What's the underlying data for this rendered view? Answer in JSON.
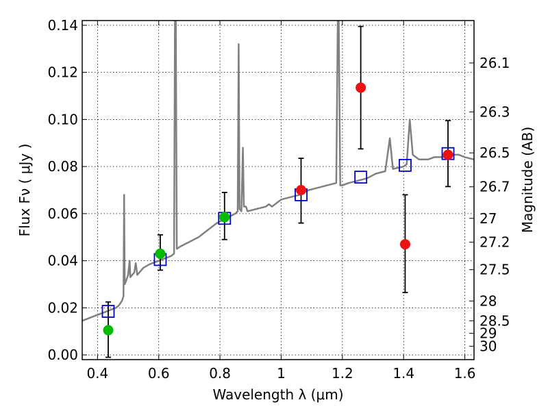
{
  "chart_data": {
    "type": "scatter",
    "title": "",
    "xlabel": "Wavelength  λ (μm)",
    "ylabel": "Flux  Fν  ( μJy )",
    "ylabel_right": "Magnitude (AB)",
    "xlim": [
      0.35,
      1.63
    ],
    "ylim": [
      -0.002,
      0.142
    ],
    "grid": true,
    "x_ticks": [
      0.4,
      0.6,
      0.8,
      1.0,
      1.2,
      1.4,
      1.6
    ],
    "x_tick_labels": [
      "0.4",
      "0.6",
      "0.8",
      "1",
      "1.2",
      "1.4",
      "1.6"
    ],
    "y_ticks": [
      0.0,
      0.02,
      0.04,
      0.06,
      0.08,
      0.1,
      0.12,
      0.14
    ],
    "y_tick_labels": [
      "0.00",
      "0.02",
      "0.04",
      "0.06",
      "0.08",
      "0.10",
      "0.12",
      "0.14"
    ],
    "right_ticks": [
      {
        "label": "26.1",
        "flux": 0.124
      },
      {
        "label": "26.3",
        "flux": 0.1032
      },
      {
        "label": "26.5",
        "flux": 0.0858
      },
      {
        "label": "26.7",
        "flux": 0.0714
      },
      {
        "label": "27",
        "flux": 0.058
      },
      {
        "label": "27.2",
        "flux": 0.0479
      },
      {
        "label": "27.5",
        "flux": 0.0362
      },
      {
        "label": "28",
        "flux": 0.0229
      },
      {
        "label": "28.5",
        "flux": 0.0145
      },
      {
        "label": "29",
        "flux": 0.0092
      },
      {
        "label": "30",
        "flux": 0.0037
      }
    ],
    "series": [
      {
        "kind": "model_spectrum",
        "color": "#808080",
        "points": [
          [
            0.35,
            0.0145
          ],
          [
            0.36,
            0.015
          ],
          [
            0.38,
            0.016
          ],
          [
            0.4,
            0.017
          ],
          [
            0.42,
            0.018
          ],
          [
            0.44,
            0.019
          ],
          [
            0.46,
            0.02
          ],
          [
            0.47,
            0.021
          ],
          [
            0.48,
            0.023
          ],
          [
            0.485,
            0.025
          ],
          [
            0.487,
            0.068
          ],
          [
            0.489,
            0.03
          ],
          [
            0.495,
            0.032
          ],
          [
            0.5,
            0.034
          ],
          [
            0.505,
            0.04
          ],
          [
            0.507,
            0.033
          ],
          [
            0.52,
            0.035
          ],
          [
            0.525,
            0.039
          ],
          [
            0.53,
            0.034
          ],
          [
            0.55,
            0.037
          ],
          [
            0.57,
            0.0385
          ],
          [
            0.6,
            0.04
          ],
          [
            0.62,
            0.041
          ],
          [
            0.64,
            0.042
          ],
          [
            0.65,
            0.043
          ],
          [
            0.653,
            0.142
          ],
          [
            0.656,
            0.142
          ],
          [
            0.659,
            0.045
          ],
          [
            0.67,
            0.046
          ],
          [
            0.7,
            0.048
          ],
          [
            0.73,
            0.05
          ],
          [
            0.76,
            0.053
          ],
          [
            0.79,
            0.056
          ],
          [
            0.82,
            0.058
          ],
          [
            0.85,
            0.06
          ],
          [
            0.858,
            0.061
          ],
          [
            0.861,
            0.132
          ],
          [
            0.864,
            0.062
          ],
          [
            0.87,
            0.061
          ],
          [
            0.875,
            0.088
          ],
          [
            0.878,
            0.063
          ],
          [
            0.885,
            0.063
          ],
          [
            0.89,
            0.061
          ],
          [
            0.92,
            0.062
          ],
          [
            0.95,
            0.063
          ],
          [
            0.96,
            0.064
          ],
          [
            0.97,
            0.063
          ],
          [
            1.0,
            0.066
          ],
          [
            1.03,
            0.067
          ],
          [
            1.06,
            0.068
          ],
          [
            1.09,
            0.07
          ],
          [
            1.12,
            0.071
          ],
          [
            1.15,
            0.072
          ],
          [
            1.18,
            0.073
          ],
          [
            1.185,
            0.142
          ],
          [
            1.188,
            0.142
          ],
          [
            1.193,
            0.072
          ],
          [
            1.2,
            0.072
          ],
          [
            1.22,
            0.073
          ],
          [
            1.25,
            0.074
          ],
          [
            1.28,
            0.075
          ],
          [
            1.31,
            0.077
          ],
          [
            1.34,
            0.078
          ],
          [
            1.355,
            0.092
          ],
          [
            1.365,
            0.079
          ],
          [
            1.4,
            0.08
          ],
          [
            1.41,
            0.081
          ],
          [
            1.42,
            0.1
          ],
          [
            1.43,
            0.085
          ],
          [
            1.45,
            0.083
          ],
          [
            1.48,
            0.083
          ],
          [
            1.5,
            0.084
          ],
          [
            1.53,
            0.084
          ],
          [
            1.56,
            0.085
          ],
          [
            1.58,
            0.085
          ],
          [
            1.6,
            0.084
          ],
          [
            1.63,
            0.083
          ]
        ]
      },
      {
        "kind": "model_band_flux",
        "marker": "open-square",
        "color": "#0000cc",
        "points": [
          [
            0.435,
            0.0185
          ],
          [
            0.605,
            0.0405
          ],
          [
            0.815,
            0.058
          ],
          [
            1.065,
            0.068
          ],
          [
            1.26,
            0.0755
          ],
          [
            1.405,
            0.0805
          ],
          [
            1.545,
            0.0855
          ]
        ]
      },
      {
        "kind": "observed_green",
        "marker": "filled-circle",
        "color": "#00bb00",
        "points": [
          {
            "x": 0.435,
            "y": 0.0105,
            "lo": -0.001,
            "hi": 0.0225
          },
          {
            "x": 0.605,
            "y": 0.043,
            "lo": 0.036,
            "hi": 0.051
          },
          {
            "x": 0.815,
            "y": 0.0585,
            "lo": 0.049,
            "hi": 0.069
          }
        ]
      },
      {
        "kind": "observed_red",
        "marker": "filled-circle",
        "color": "#ee1111",
        "points": [
          {
            "x": 1.065,
            "y": 0.07,
            "lo": 0.056,
            "hi": 0.0835
          },
          {
            "x": 1.26,
            "y": 0.1135,
            "lo": 0.0875,
            "hi": 0.1395
          },
          {
            "x": 1.405,
            "y": 0.047,
            "lo": 0.0265,
            "hi": 0.068
          },
          {
            "x": 1.545,
            "y": 0.085,
            "lo": 0.0715,
            "hi": 0.0995
          }
        ]
      }
    ]
  }
}
